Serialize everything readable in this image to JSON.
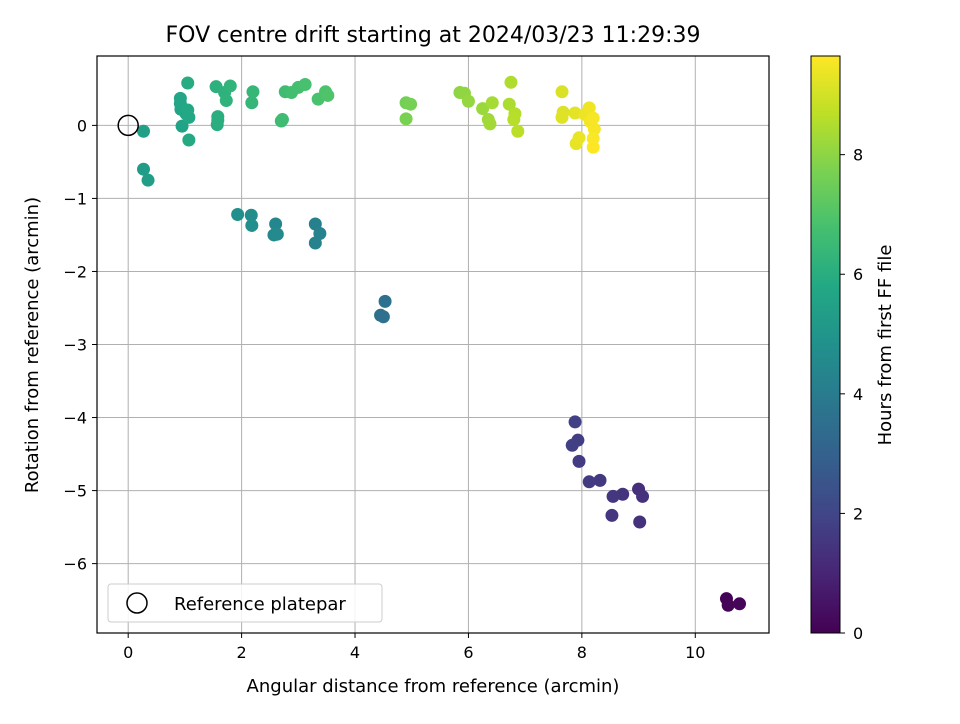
{
  "chart_data": {
    "type": "scatter",
    "title": "FOV centre drift starting at 2024/03/23 11:29:39",
    "xlabel": "Angular distance from reference (arcmin)",
    "ylabel": "Rotation from reference (arcmin)",
    "xlim": [
      -0.55,
      11.3
    ],
    "ylim": [
      -6.95,
      0.95
    ],
    "xticks": [
      0,
      2,
      4,
      6,
      8,
      10
    ],
    "yticks": [
      0,
      -1,
      -2,
      -3,
      -4,
      -5,
      -6
    ],
    "xtick_labels": [
      "0",
      "2",
      "4",
      "6",
      "8",
      "10"
    ],
    "ytick_labels": [
      "0",
      "−1",
      "−2",
      "−3",
      "−4",
      "−5",
      "−6"
    ],
    "grid": true,
    "colorbar": {
      "label": "Hours from first FF file",
      "range": [
        0,
        9.65
      ],
      "ticks": [
        0,
        2,
        4,
        6,
        8
      ],
      "tick_labels": [
        "0",
        "2",
        "4",
        "6",
        "8"
      ],
      "colormap": "viridis"
    },
    "legend": {
      "position": "bottom-left",
      "label": "Reference platepar"
    },
    "reference_point": {
      "x": 0,
      "y": 0
    },
    "points": [
      {
        "x": 10.55,
        "y": -6.48,
        "hours": 0.05
      },
      {
        "x": 10.58,
        "y": -6.57,
        "hours": 0.1
      },
      {
        "x": 10.78,
        "y": -6.55,
        "hours": 0.15
      },
      {
        "x": 9.0,
        "y": -4.98,
        "hours": 1.3
      },
      {
        "x": 9.07,
        "y": -5.08,
        "hours": 1.35
      },
      {
        "x": 9.02,
        "y": -5.43,
        "hours": 1.4
      },
      {
        "x": 8.72,
        "y": -5.05,
        "hours": 1.45
      },
      {
        "x": 8.55,
        "y": -5.08,
        "hours": 1.5
      },
      {
        "x": 8.53,
        "y": -5.34,
        "hours": 1.55
      },
      {
        "x": 8.32,
        "y": -4.86,
        "hours": 1.6
      },
      {
        "x": 8.13,
        "y": -4.88,
        "hours": 1.65
      },
      {
        "x": 7.95,
        "y": -4.6,
        "hours": 1.7
      },
      {
        "x": 7.93,
        "y": -4.31,
        "hours": 1.75
      },
      {
        "x": 7.83,
        "y": -4.38,
        "hours": 1.8
      },
      {
        "x": 7.88,
        "y": -4.06,
        "hours": 1.85
      },
      {
        "x": 4.45,
        "y": -2.6,
        "hours": 3.5
      },
      {
        "x": 4.5,
        "y": -2.62,
        "hours": 3.55
      },
      {
        "x": 4.53,
        "y": -2.41,
        "hours": 3.6
      },
      {
        "x": 3.3,
        "y": -1.35,
        "hours": 4.2
      },
      {
        "x": 3.38,
        "y": -1.48,
        "hours": 4.25
      },
      {
        "x": 3.3,
        "y": -1.61,
        "hours": 4.3
      },
      {
        "x": 2.6,
        "y": -1.35,
        "hours": 4.45
      },
      {
        "x": 2.57,
        "y": -1.5,
        "hours": 4.5
      },
      {
        "x": 2.63,
        "y": -1.49,
        "hours": 4.55
      },
      {
        "x": 2.17,
        "y": -1.23,
        "hours": 4.7
      },
      {
        "x": 2.18,
        "y": -1.37,
        "hours": 4.75
      },
      {
        "x": 1.93,
        "y": -1.22,
        "hours": 4.8
      },
      {
        "x": 0.27,
        "y": -0.6,
        "hours": 5.3
      },
      {
        "x": 0.35,
        "y": -0.75,
        "hours": 5.35
      },
      {
        "x": 0.27,
        "y": -0.08,
        "hours": 5.4
      },
      {
        "x": 0.95,
        "y": -0.01,
        "hours": 5.6
      },
      {
        "x": 0.93,
        "y": 0.22,
        "hours": 5.65
      },
      {
        "x": 0.92,
        "y": 0.3,
        "hours": 5.7
      },
      {
        "x": 0.92,
        "y": 0.37,
        "hours": 5.7
      },
      {
        "x": 1.02,
        "y": 0.16,
        "hours": 5.75
      },
      {
        "x": 1.05,
        "y": 0.21,
        "hours": 5.8
      },
      {
        "x": 1.07,
        "y": 0.11,
        "hours": 5.8
      },
      {
        "x": 1.07,
        "y": -0.2,
        "hours": 5.85
      },
      {
        "x": 1.05,
        "y": 0.58,
        "hours": 5.9
      },
      {
        "x": 1.57,
        "y": 0.01,
        "hours": 6.0
      },
      {
        "x": 1.58,
        "y": 0.07,
        "hours": 6.05
      },
      {
        "x": 1.58,
        "y": 0.12,
        "hours": 6.05
      },
      {
        "x": 1.55,
        "y": 0.53,
        "hours": 6.1
      },
      {
        "x": 1.7,
        "y": 0.45,
        "hours": 6.15
      },
      {
        "x": 1.73,
        "y": 0.34,
        "hours": 6.2
      },
      {
        "x": 1.8,
        "y": 0.54,
        "hours": 6.25
      },
      {
        "x": 2.18,
        "y": 0.31,
        "hours": 6.35
      },
      {
        "x": 2.2,
        "y": 0.46,
        "hours": 6.4
      },
      {
        "x": 2.7,
        "y": 0.06,
        "hours": 6.55
      },
      {
        "x": 2.72,
        "y": 0.08,
        "hours": 6.6
      },
      {
        "x": 2.77,
        "y": 0.46,
        "hours": 6.65
      },
      {
        "x": 2.88,
        "y": 0.45,
        "hours": 6.7
      },
      {
        "x": 3.0,
        "y": 0.52,
        "hours": 6.75
      },
      {
        "x": 3.12,
        "y": 0.56,
        "hours": 6.8
      },
      {
        "x": 3.35,
        "y": 0.36,
        "hours": 6.85
      },
      {
        "x": 3.48,
        "y": 0.46,
        "hours": 6.9
      },
      {
        "x": 3.52,
        "y": 0.41,
        "hours": 6.95
      },
      {
        "x": 4.9,
        "y": 0.31,
        "hours": 7.6
      },
      {
        "x": 4.98,
        "y": 0.29,
        "hours": 7.65
      },
      {
        "x": 4.9,
        "y": 0.09,
        "hours": 7.7
      },
      {
        "x": 5.85,
        "y": 0.45,
        "hours": 8.0
      },
      {
        "x": 5.93,
        "y": 0.44,
        "hours": 8.05
      },
      {
        "x": 6.0,
        "y": 0.33,
        "hours": 8.1
      },
      {
        "x": 6.25,
        "y": 0.23,
        "hours": 8.2
      },
      {
        "x": 6.35,
        "y": 0.08,
        "hours": 8.25
      },
      {
        "x": 6.38,
        "y": 0.02,
        "hours": 8.3
      },
      {
        "x": 6.42,
        "y": 0.31,
        "hours": 8.35
      },
      {
        "x": 6.72,
        "y": 0.29,
        "hours": 8.45
      },
      {
        "x": 6.75,
        "y": 0.59,
        "hours": 8.5
      },
      {
        "x": 6.82,
        "y": 0.16,
        "hours": 8.55
      },
      {
        "x": 6.8,
        "y": 0.08,
        "hours": 8.6
      },
      {
        "x": 6.87,
        "y": -0.08,
        "hours": 8.65
      },
      {
        "x": 7.65,
        "y": 0.46,
        "hours": 9.1
      },
      {
        "x": 7.67,
        "y": 0.18,
        "hours": 9.15
      },
      {
        "x": 7.65,
        "y": 0.11,
        "hours": 9.2
      },
      {
        "x": 7.88,
        "y": 0.17,
        "hours": 9.25
      },
      {
        "x": 7.9,
        "y": -0.25,
        "hours": 9.3
      },
      {
        "x": 7.95,
        "y": -0.17,
        "hours": 9.35
      },
      {
        "x": 8.05,
        "y": 0.15,
        "hours": 9.4
      },
      {
        "x": 8.13,
        "y": 0.24,
        "hours": 9.45
      },
      {
        "x": 8.15,
        "y": 0.05,
        "hours": 9.5
      },
      {
        "x": 8.2,
        "y": 0.1,
        "hours": 9.55
      },
      {
        "x": 8.22,
        "y": -0.05,
        "hours": 9.55
      },
      {
        "x": 8.2,
        "y": -0.18,
        "hours": 9.6
      },
      {
        "x": 8.2,
        "y": -0.3,
        "hours": 9.65
      }
    ]
  }
}
